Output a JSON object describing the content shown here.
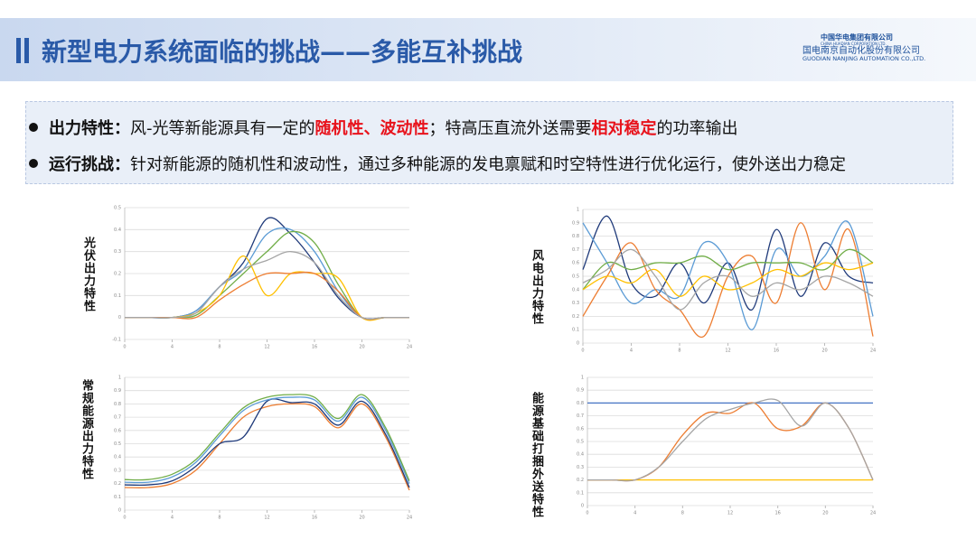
{
  "header": {
    "title": "新型电力系统面临的挑战——多能互补挑战",
    "logo": [
      "中国华电集团有限公司",
      "CHINA HUADIAN CORPORATION LTD.",
      "国电南京自动化股份有限公司",
      "GUODIAN NANJING AUTOMATION CO.,LTD."
    ]
  },
  "bullets": [
    {
      "label": "出力特性：",
      "segments": [
        {
          "text": "风-光等新能源具有一定的"
        },
        {
          "text": "随机性、波动性",
          "color": "#e8121b"
        },
        {
          "text": "；特高压直流外送需要"
        },
        {
          "text": "相对稳定",
          "color": "#e8121b"
        },
        {
          "text": "的功率输出"
        }
      ]
    },
    {
      "label": "运行挑战：",
      "segments": [
        {
          "text": "针对新能源的随机性和波动性，通过多种能源的发电禀赋和时空特性进行优化运行，使外送出力稳定"
        }
      ]
    }
  ],
  "chart_data": [
    {
      "type": "line",
      "label": "光伏出力特性",
      "x": [
        0,
        2,
        4,
        6,
        8,
        10,
        12,
        14,
        16,
        18,
        20,
        22,
        24
      ],
      "xlim": [
        0,
        24
      ],
      "xticks": [
        0,
        4,
        8,
        12,
        16,
        20,
        24
      ],
      "ylim": [
        -0.1,
        0.5
      ],
      "yticks": [
        -0.1,
        0,
        0.1,
        0.2,
        0.3,
        0.4,
        0.5
      ],
      "grid": true,
      "series": [
        {
          "color": "#1f3a7a",
          "values": [
            0,
            0,
            0,
            0.03,
            0.14,
            0.25,
            0.45,
            0.38,
            0.25,
            0.09,
            0,
            0,
            0
          ]
        },
        {
          "color": "#5b9bd5",
          "values": [
            0,
            0,
            0,
            0.03,
            0.14,
            0.22,
            0.38,
            0.4,
            0.3,
            0.12,
            0,
            0,
            0
          ]
        },
        {
          "color": "#70ad47",
          "values": [
            0,
            0,
            0,
            0.01,
            0.1,
            0.2,
            0.3,
            0.39,
            0.34,
            0.15,
            0,
            0,
            0
          ]
        },
        {
          "color": "#ffc000",
          "values": [
            0,
            0,
            0,
            0.02,
            0.1,
            0.28,
            0.1,
            0.2,
            0.2,
            0.18,
            0,
            0,
            0
          ]
        },
        {
          "color": "#ed7d31",
          "values": [
            0,
            0,
            0,
            0,
            0.08,
            0.15,
            0.2,
            0.2,
            0.2,
            0.12,
            0,
            0,
            0
          ]
        },
        {
          "color": "#a5a5a5",
          "values": [
            0,
            0,
            0,
            0.02,
            0.14,
            0.22,
            0.26,
            0.3,
            0.25,
            0.1,
            0,
            0,
            0
          ]
        }
      ]
    },
    {
      "type": "line",
      "label": "风电出力特性",
      "x": [
        0,
        2,
        4,
        6,
        8,
        10,
        12,
        14,
        16,
        18,
        20,
        22,
        24
      ],
      "xlim": [
        0,
        24
      ],
      "xticks": [
        0,
        4,
        8,
        12,
        16,
        20,
        24
      ],
      "ylim": [
        0,
        1
      ],
      "yticks": [
        0,
        0.1,
        0.2,
        0.3,
        0.4,
        0.5,
        0.6,
        0.7,
        0.8,
        0.9,
        1
      ],
      "grid": true,
      "series": [
        {
          "color": "#1f3a7a",
          "values": [
            0.55,
            0.95,
            0.45,
            0.35,
            0.6,
            0.3,
            0.6,
            0.25,
            0.85,
            0.35,
            0.75,
            0.5,
            0.45
          ]
        },
        {
          "color": "#5b9bd5",
          "values": [
            0.9,
            0.6,
            0.3,
            0.4,
            0.35,
            0.75,
            0.6,
            0.1,
            0.7,
            0.5,
            0.65,
            0.9,
            0.2
          ]
        },
        {
          "color": "#ed7d31",
          "values": [
            0.2,
            0.5,
            0.75,
            0.4,
            0.25,
            0.05,
            0.5,
            0.65,
            0.3,
            0.9,
            0.4,
            0.85,
            0.05
          ]
        },
        {
          "color": "#70ad47",
          "values": [
            0.4,
            0.6,
            0.55,
            0.6,
            0.6,
            0.65,
            0.55,
            0.6,
            0.6,
            0.6,
            0.55,
            0.7,
            0.6
          ]
        },
        {
          "color": "#ffc000",
          "values": [
            0.4,
            0.5,
            0.45,
            0.55,
            0.35,
            0.5,
            0.4,
            0.45,
            0.55,
            0.5,
            0.6,
            0.55,
            0.6
          ]
        },
        {
          "color": "#a5a5a5",
          "values": [
            0.45,
            0.55,
            0.7,
            0.5,
            0.25,
            0.45,
            0.5,
            0.35,
            0.45,
            0.4,
            0.5,
            0.45,
            0.35
          ]
        }
      ]
    },
    {
      "type": "line",
      "label": "常规能源出力特性",
      "x": [
        0,
        2,
        4,
        6,
        8,
        10,
        12,
        14,
        16,
        18,
        20,
        22,
        24
      ],
      "xlim": [
        0,
        24
      ],
      "xticks": [
        0,
        4,
        8,
        12,
        16,
        20,
        24
      ],
      "ylim": [
        0,
        1
      ],
      "yticks": [
        0,
        0.1,
        0.2,
        0.3,
        0.4,
        0.5,
        0.6,
        0.7,
        0.8,
        0.9,
        1
      ],
      "grid": true,
      "series": [
        {
          "color": "#ed7d31",
          "values": [
            0.17,
            0.17,
            0.2,
            0.3,
            0.5,
            0.7,
            0.78,
            0.8,
            0.78,
            0.62,
            0.8,
            0.55,
            0.15
          ]
        },
        {
          "color": "#1f3a7a",
          "values": [
            0.19,
            0.19,
            0.22,
            0.33,
            0.5,
            0.55,
            0.82,
            0.81,
            0.8,
            0.64,
            0.82,
            0.57,
            0.17
          ]
        },
        {
          "color": "#5b9bd5",
          "values": [
            0.21,
            0.21,
            0.25,
            0.36,
            0.56,
            0.75,
            0.83,
            0.85,
            0.83,
            0.67,
            0.85,
            0.6,
            0.2
          ]
        },
        {
          "color": "#70ad47",
          "values": [
            0.23,
            0.23,
            0.27,
            0.38,
            0.58,
            0.77,
            0.85,
            0.87,
            0.85,
            0.69,
            0.87,
            0.62,
            0.22
          ]
        }
      ]
    },
    {
      "type": "line",
      "label": "能源基础打捆外送特性",
      "x": [
        0,
        2,
        4,
        6,
        8,
        10,
        12,
        14,
        16,
        18,
        20,
        22,
        24
      ],
      "xlim": [
        0,
        24
      ],
      "xticks": [
        0,
        4,
        8,
        12,
        16,
        20,
        24
      ],
      "ylim": [
        0,
        1
      ],
      "yticks": [
        0,
        0.1,
        0.2,
        0.3,
        0.4,
        0.5,
        0.6,
        0.7,
        0.8,
        0.9,
        1
      ],
      "grid": true,
      "series": [
        {
          "color": "#4472c4",
          "values": [
            0.8,
            0.8,
            0.8,
            0.8,
            0.8,
            0.8,
            0.8,
            0.8,
            0.8,
            0.8,
            0.8,
            0.8,
            0.8
          ]
        },
        {
          "color": "#ffc000",
          "values": [
            0.2,
            0.2,
            0.2,
            0.2,
            0.2,
            0.2,
            0.2,
            0.2,
            0.2,
            0.2,
            0.2,
            0.2,
            0.2
          ]
        },
        {
          "color": "#ed7d31",
          "values": [
            0.2,
            0.2,
            0.2,
            0.3,
            0.55,
            0.72,
            0.72,
            0.8,
            0.6,
            0.62,
            0.8,
            0.6,
            0.2
          ]
        },
        {
          "color": "#a5a5a5",
          "values": [
            0.2,
            0.2,
            0.2,
            0.3,
            0.5,
            0.68,
            0.75,
            0.8,
            0.82,
            0.62,
            0.8,
            0.6,
            0.2
          ]
        }
      ]
    }
  ]
}
